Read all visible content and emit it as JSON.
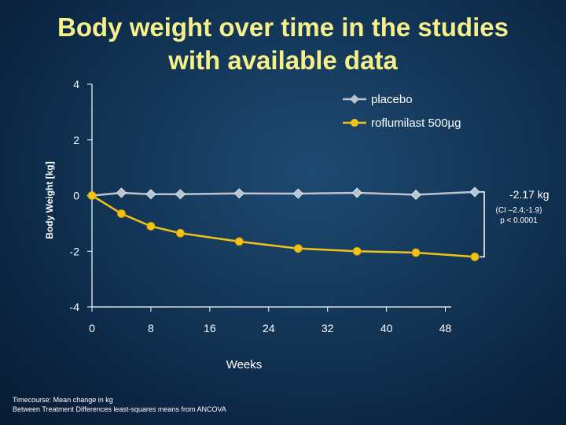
{
  "title_lines": [
    "Body weight over time in the studies",
    "with available data"
  ],
  "footnote": {
    "line1": "Timecourse: Mean change in kg",
    "line2": "Between Treatment Differences least-squares means from ANCOVA"
  },
  "chart_data": {
    "type": "line",
    "xlabel": "Weeks",
    "ylabel": "Body Weight [kg]",
    "xlim": [
      0,
      52
    ],
    "ylim": [
      -4,
      4
    ],
    "xticks": [
      0,
      8,
      16,
      24,
      32,
      40,
      48
    ],
    "yticks": [
      4,
      2,
      0,
      -2,
      -4
    ],
    "series": [
      {
        "name": "placebo",
        "color": "#b9c4d0",
        "marker": "diamond",
        "x": [
          0,
          4,
          8,
          12,
          20,
          28,
          36,
          44,
          52
        ],
        "y": [
          0.0,
          0.1,
          0.05,
          0.05,
          0.08,
          0.07,
          0.1,
          0.03,
          0.13
        ]
      },
      {
        "name": "roflumilast 500µg",
        "color": "#f2c318",
        "marker": "circle",
        "x": [
          0,
          4,
          8,
          12,
          20,
          28,
          36,
          44,
          52
        ],
        "y": [
          0.0,
          -0.65,
          -1.1,
          -1.35,
          -1.65,
          -1.9,
          -2.0,
          -2.05,
          -2.2
        ]
      }
    ],
    "annotation": {
      "diff": "-2.17 kg",
      "ci": "(CI –2.4;-1.9)",
      "p": "p < 0.0001"
    }
  }
}
